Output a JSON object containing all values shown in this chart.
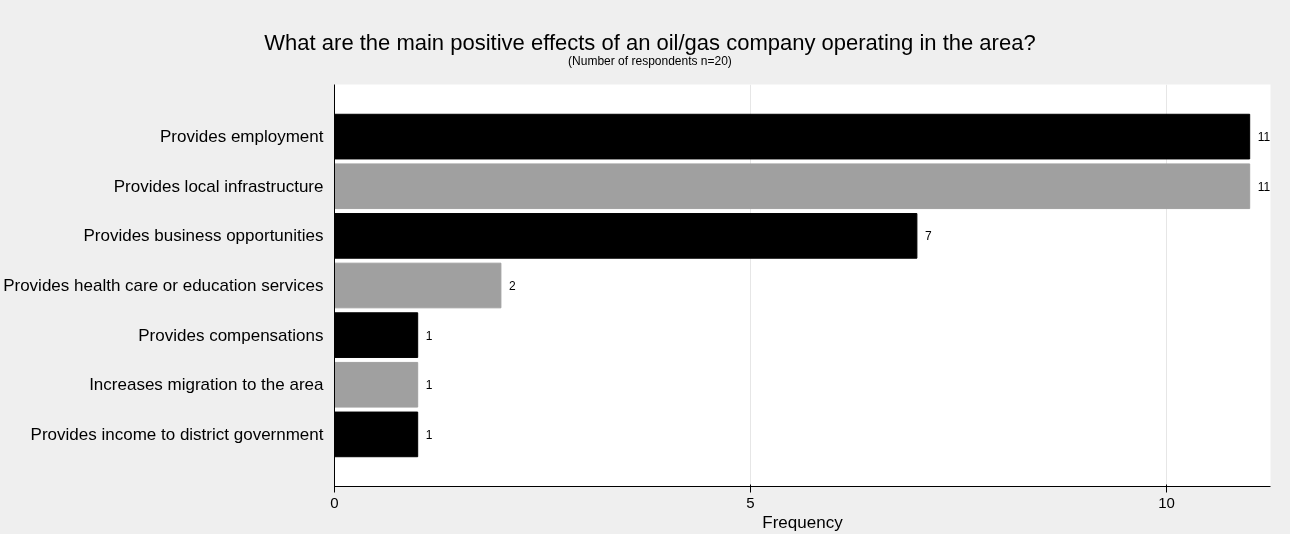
{
  "chart_data": {
    "type": "bar",
    "orientation": "horizontal",
    "title": "What are the main positive effects of an oil/gas company operating in the area?",
    "subtitle": "(Number of respondents n=20)",
    "xlabel": "Frequency",
    "categories": [
      "Provides employment",
      "Provides local infrastructure",
      "Provides business opportunities",
      "Provides health care or education services",
      "Provides compensations",
      "Increases migration to the area",
      "Provides income to district government"
    ],
    "values": [
      11,
      11,
      7,
      2,
      1,
      1,
      1
    ],
    "colors": [
      "#000000",
      "#a0a0a0",
      "#000000",
      "#a0a0a0",
      "#000000",
      "#a0a0a0",
      "#000000"
    ],
    "xlim": [
      0,
      11.25
    ],
    "xticks": [
      0,
      5,
      10
    ],
    "grid": "x",
    "data_labels": true
  }
}
